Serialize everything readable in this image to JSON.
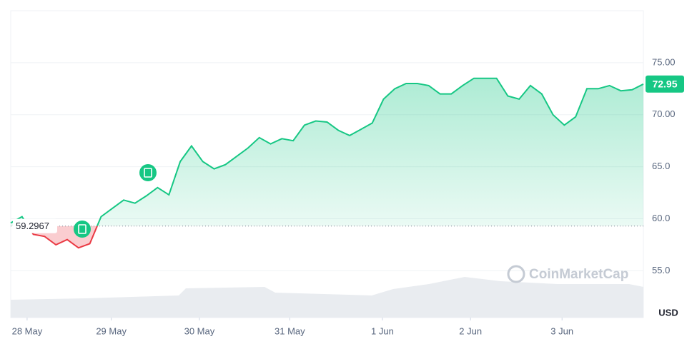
{
  "chart_data": {
    "type": "line",
    "values": [
      59.6,
      60.2,
      58.5,
      58.3,
      57.5,
      58.0,
      57.2,
      57.6,
      60.2,
      61.0,
      61.8,
      61.5,
      62.2,
      63.0,
      62.3,
      65.5,
      67.0,
      65.5,
      64.8,
      65.2,
      66.0,
      66.8,
      67.8,
      67.2,
      67.7,
      67.5,
      69.0,
      69.4,
      69.3,
      68.5,
      68.0,
      68.6,
      69.2,
      71.5,
      72.5,
      73.0,
      73.0,
      72.8,
      72.0,
      72.0,
      72.8,
      73.5,
      73.5,
      73.5,
      71.8,
      71.5,
      72.8,
      72.0,
      70.0,
      69.0,
      69.8,
      72.5,
      72.5,
      72.8,
      72.3,
      72.4,
      72.95
    ],
    "color": "#16c784",
    "color_below": "#ea3943",
    "base_value": 59.2967,
    "last_value": 72.95,
    "xlim": [
      0,
      56
    ],
    "xticks": [
      {
        "value": 1.45,
        "label": "28 May"
      },
      {
        "value": 8.9,
        "label": "29 May"
      },
      {
        "value": 16.7,
        "label": "30 May"
      },
      {
        "value": 24.7,
        "label": "31 May"
      },
      {
        "value": 32.9,
        "label": "1 Jun"
      },
      {
        "value": 40.7,
        "label": "2 Jun"
      },
      {
        "value": 48.8,
        "label": "3 Jun"
      }
    ],
    "ylim": [
      50.5,
      80
    ],
    "yticks": [
      {
        "value": 55,
        "label": "55.0"
      },
      {
        "value": 60,
        "label": "60.0"
      },
      {
        "value": 65,
        "label": "65.0"
      },
      {
        "value": 70,
        "label": "70.00"
      },
      {
        "value": 75,
        "label": "75.00"
      }
    ],
    "unit": "USD",
    "watermark": "CoinMarketCap",
    "grid": true
  }
}
